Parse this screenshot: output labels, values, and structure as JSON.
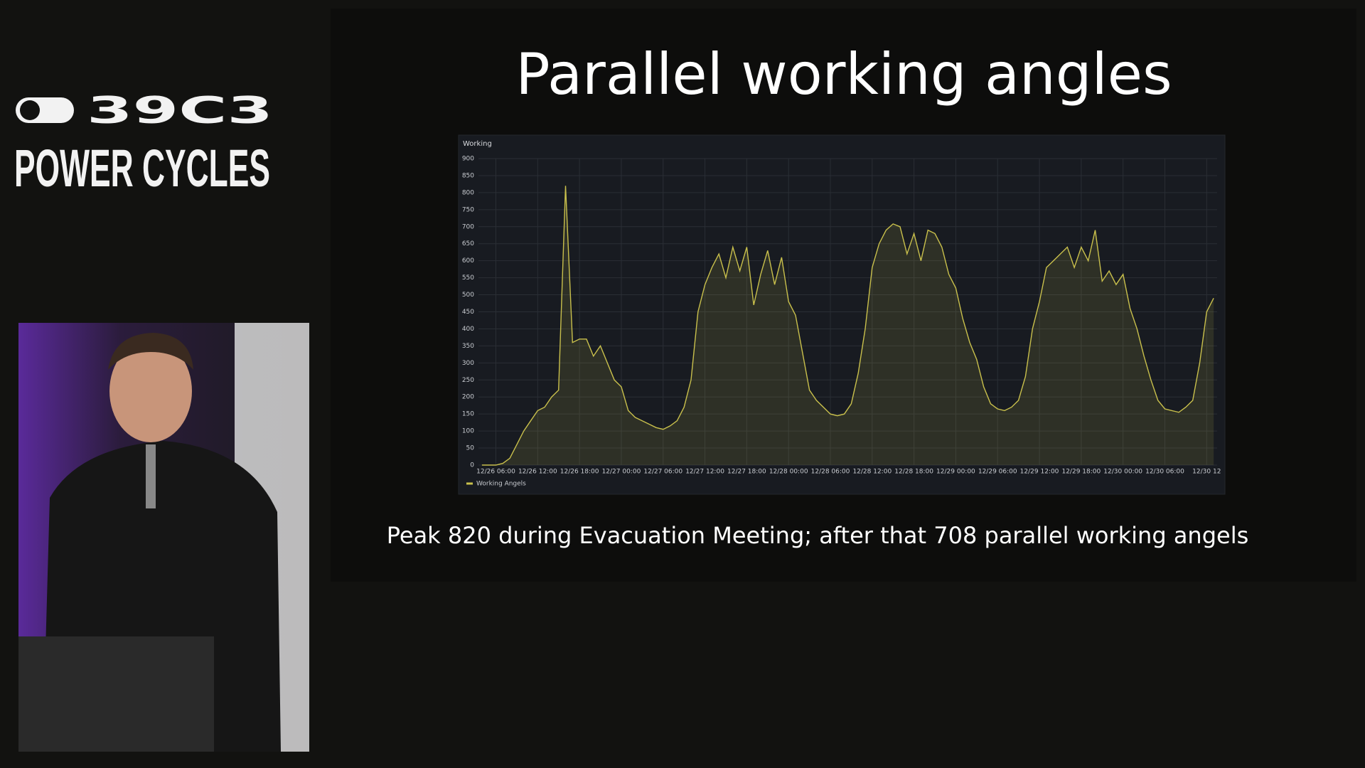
{
  "logo": {
    "event": "39C3",
    "motto": "POWER CYCLES"
  },
  "slide": {
    "title": "Parallel working angles",
    "caption": "Peak 820 during Evacuation Meeting; after that 708 parallel working angels"
  },
  "chart_data": {
    "type": "line",
    "title": "Working",
    "area_fill": true,
    "grid": true,
    "legend": "bottom-left",
    "x": [
      "12/26 04:00",
      "12/26 05:00",
      "12/26 06:00",
      "12/26 07:00",
      "12/26 08:00",
      "12/26 09:00",
      "12/26 10:00",
      "12/26 11:00",
      "12/26 12:00",
      "12/26 13:00",
      "12/26 14:00",
      "12/26 15:00",
      "12/26 16:00",
      "12/26 17:00",
      "12/26 18:00",
      "12/26 19:00",
      "12/26 20:00",
      "12/26 21:00",
      "12/26 22:00",
      "12/26 23:00",
      "12/27 00:00",
      "12/27 01:00",
      "12/27 02:00",
      "12/27 03:00",
      "12/27 04:00",
      "12/27 05:00",
      "12/27 06:00",
      "12/27 07:00",
      "12/27 08:00",
      "12/27 09:00",
      "12/27 10:00",
      "12/27 11:00",
      "12/27 12:00",
      "12/27 13:00",
      "12/27 14:00",
      "12/27 15:00",
      "12/27 16:00",
      "12/27 17:00",
      "12/27 18:00",
      "12/27 19:00",
      "12/27 20:00",
      "12/27 21:00",
      "12/27 22:00",
      "12/27 23:00",
      "12/28 00:00",
      "12/28 01:00",
      "12/28 02:00",
      "12/28 03:00",
      "12/28 04:00",
      "12/28 05:00",
      "12/28 06:00",
      "12/28 07:00",
      "12/28 08:00",
      "12/28 09:00",
      "12/28 10:00",
      "12/28 11:00",
      "12/28 12:00",
      "12/28 13:00",
      "12/28 14:00",
      "12/28 15:00",
      "12/28 16:00",
      "12/28 17:00",
      "12/28 18:00",
      "12/28 19:00",
      "12/28 20:00",
      "12/28 21:00",
      "12/28 22:00",
      "12/28 23:00",
      "12/29 00:00",
      "12/29 01:00",
      "12/29 02:00",
      "12/29 03:00",
      "12/29 04:00",
      "12/29 05:00",
      "12/29 06:00",
      "12/29 07:00",
      "12/29 08:00",
      "12/29 09:00",
      "12/29 10:00",
      "12/29 11:00",
      "12/29 12:00",
      "12/29 13:00",
      "12/29 14:00",
      "12/29 15:00",
      "12/29 16:00",
      "12/29 17:00",
      "12/29 18:00",
      "12/29 19:00",
      "12/29 20:00",
      "12/29 21:00",
      "12/29 22:00",
      "12/29 23:00",
      "12/30 00:00",
      "12/30 01:00",
      "12/30 02:00",
      "12/30 03:00",
      "12/30 04:00",
      "12/30 05:00",
      "12/30 06:00",
      "12/30 07:00",
      "12/30 08:00",
      "12/30 09:00",
      "12/30 10:00",
      "12/30 11:00",
      "12/30 12:00",
      "12/30 13:00"
    ],
    "series": [
      {
        "name": "Working Angels",
        "color": "#c9c04c",
        "values": [
          0,
          0,
          0,
          5,
          20,
          60,
          100,
          130,
          160,
          170,
          200,
          220,
          820,
          360,
          370,
          370,
          320,
          350,
          300,
          250,
          230,
          160,
          140,
          130,
          120,
          110,
          105,
          115,
          130,
          170,
          250,
          450,
          530,
          580,
          620,
          550,
          640,
          570,
          640,
          470,
          560,
          630,
          530,
          610,
          480,
          440,
          330,
          220,
          190,
          170,
          150,
          145,
          150,
          180,
          270,
          400,
          580,
          650,
          690,
          708,
          700,
          620,
          680,
          600,
          690,
          680,
          640,
          560,
          520,
          430,
          360,
          310,
          230,
          180,
          165,
          160,
          170,
          190,
          260,
          400,
          480,
          580,
          600,
          620,
          640,
          580,
          640,
          600,
          690,
          540,
          570,
          530,
          560,
          460,
          400,
          320,
          250,
          190,
          165,
          160,
          155,
          170,
          190,
          300,
          450,
          490
        ]
      }
    ],
    "xlim": [
      "12/26 03:30",
      "12/30 13:30"
    ],
    "xticks": [
      "12/26 06:00",
      "12/26 12:00",
      "12/26 18:00",
      "12/27 00:00",
      "12/27 06:00",
      "12/27 12:00",
      "12/27 18:00",
      "12/28 00:00",
      "12/28 06:00",
      "12/28 12:00",
      "12/28 18:00",
      "12/29 00:00",
      "12/29 06:00",
      "12/29 12:00",
      "12/29 18:00",
      "12/30 00:00",
      "12/30 06:00",
      "12/30 12"
    ],
    "ylim": [
      0,
      900
    ],
    "yticks": [
      0,
      50,
      100,
      150,
      200,
      250,
      300,
      350,
      400,
      450,
      500,
      550,
      600,
      650,
      700,
      750,
      800,
      850,
      900
    ]
  }
}
